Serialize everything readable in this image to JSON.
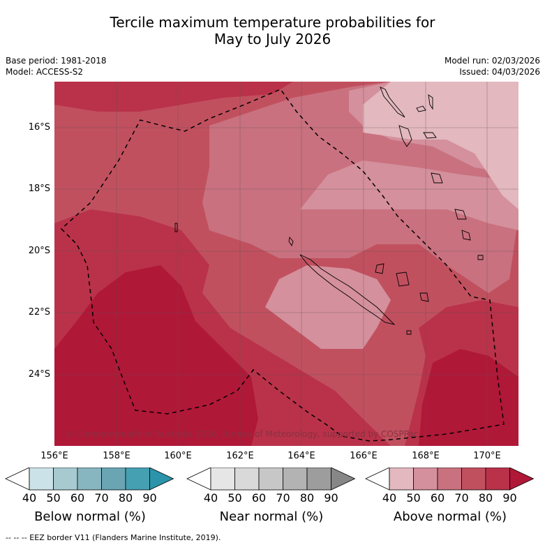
{
  "title_line1": "Tercile maximum temperature probabilities for",
  "title_line2": "May to July 2026",
  "base_period": "Base period: 1981-2018",
  "model": "Model: ACCESS-S2",
  "model_run": "Model run: 02/03/2026",
  "issued": "Issued: 04/03/2026",
  "copyright": "© Commonwealth of Australia 2026, Bureau of Meteorology, supported by COSPPac",
  "lat_labels": [
    "16°S",
    "18°S",
    "20°S",
    "22°S",
    "24°S"
  ],
  "lon_labels": [
    "156°E",
    "158°E",
    "160°E",
    "162°E",
    "164°E",
    "166°E",
    "168°E",
    "170°E"
  ],
  "colorbars": [
    {
      "title": "Below normal (%)",
      "ticks": [
        "40",
        "50",
        "60",
        "70",
        "80",
        "90"
      ],
      "colors": [
        "#ffffff",
        "#cbe3e8",
        "#a7cad0",
        "#88b6c0",
        "#6aa5b4",
        "#45a0b2",
        "#2b94aa"
      ]
    },
    {
      "title": "Near normal (%)",
      "ticks": [
        "40",
        "50",
        "60",
        "70",
        "80",
        "90"
      ],
      "colors": [
        "#ffffff",
        "#e6e6e6",
        "#d9d9d9",
        "#c7c7c7",
        "#b3b3b3",
        "#9d9d9d",
        "#878787"
      ]
    },
    {
      "title": "Above normal (%)",
      "ticks": [
        "40",
        "50",
        "60",
        "70",
        "80",
        "90"
      ],
      "colors": [
        "#ffffff",
        "#e3b8bf",
        "#d4909c",
        "#c9717f",
        "#c1505f",
        "#b9324a",
        "#b01838"
      ]
    }
  ],
  "legend_footer": "--  --  -- EEZ border V11 (Flanders Marine Institute, 2019)."
}
